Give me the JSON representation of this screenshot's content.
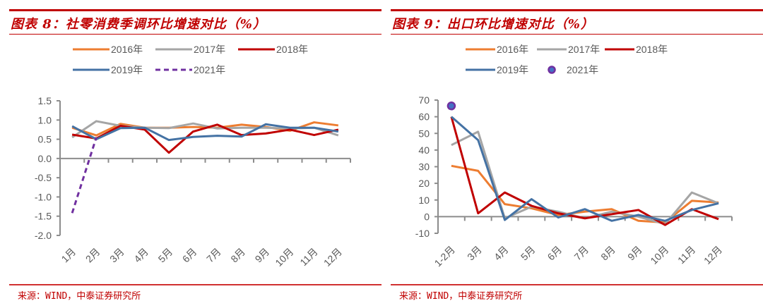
{
  "panels": [
    {
      "title": "图表 8：社零消费季调环比增速对比（%）",
      "source": "来源：WIND，中泰证券研究所"
    },
    {
      "title": "图表 9：出口环比增速对比（%）",
      "source": "来源：WIND，中泰证券研究所"
    }
  ],
  "chart_data": [
    {
      "type": "line",
      "title": "社零消费季调环比增速对比（%）",
      "xlabel": "",
      "ylabel": "",
      "ylim": [
        -2.0,
        1.5
      ],
      "yticks": [
        "1.5",
        "1.0",
        "0.5",
        "0.0",
        "-0.5",
        "-1.0",
        "-1.5",
        "-2.0"
      ],
      "ytick_values": [
        1.5,
        1.0,
        0.5,
        0.0,
        -0.5,
        -1.0,
        -1.5,
        -2.0
      ],
      "categories": [
        "1月",
        "2月",
        "3月",
        "4月",
        "5月",
        "6月",
        "7月",
        "8月",
        "9月",
        "10月",
        "11月",
        "12月"
      ],
      "grid": false,
      "legend_position": "top",
      "series": [
        {
          "name": "2016年",
          "color": "#ed7d31",
          "style": "solid",
          "values": [
            0.8,
            0.6,
            0.9,
            0.8,
            0.8,
            0.82,
            0.8,
            0.88,
            0.82,
            0.72,
            0.94,
            0.86
          ]
        },
        {
          "name": "2017年",
          "color": "#a5a5a5",
          "style": "solid",
          "values": [
            0.55,
            0.97,
            0.85,
            0.8,
            0.79,
            0.91,
            0.78,
            0.8,
            0.8,
            0.78,
            0.8,
            0.6
          ]
        },
        {
          "name": "2018年",
          "color": "#c00000",
          "style": "solid",
          "values": [
            0.62,
            0.52,
            0.85,
            0.75,
            0.15,
            0.7,
            0.88,
            0.61,
            0.65,
            0.75,
            0.61,
            0.75
          ]
        },
        {
          "name": "2019年",
          "color": "#4472a4",
          "style": "solid",
          "values": [
            0.84,
            0.5,
            0.79,
            0.8,
            0.48,
            0.56,
            0.59,
            0.57,
            0.89,
            0.8,
            0.8,
            0.7
          ]
        },
        {
          "name": "2021年",
          "color": "#7030a0",
          "style": "dashed",
          "values": [
            -1.42,
            0.55,
            null,
            null,
            null,
            null,
            null,
            null,
            null,
            null,
            null,
            null
          ]
        }
      ]
    },
    {
      "type": "line",
      "title": "出口环比增速对比（%）",
      "xlabel": "",
      "ylabel": "",
      "ylim": [
        -10,
        70
      ],
      "yticks": [
        "70",
        "60",
        "50",
        "40",
        "30",
        "20",
        "10",
        "0",
        "-10"
      ],
      "ytick_values": [
        70,
        60,
        50,
        40,
        30,
        20,
        10,
        0,
        -10
      ],
      "categories": [
        "1-2月",
        "3月",
        "4月",
        "5月",
        "6月",
        "7月",
        "8月",
        "9月",
        "10月",
        "11月",
        "12月"
      ],
      "grid": false,
      "legend_position": "top",
      "series": [
        {
          "name": "2016年",
          "color": "#ed7d31",
          "style": "solid",
          "values": [
            30.5,
            27.5,
            7.5,
            5.0,
            1.0,
            3.0,
            4.5,
            -2.5,
            -3.5,
            9.5,
            8.5
          ]
        },
        {
          "name": "2017年",
          "color": "#a5a5a5",
          "style": "solid",
          "values": [
            43.0,
            51.0,
            -1.0,
            6.0,
            3.0,
            -1.0,
            3.0,
            0.0,
            -4.5,
            14.5,
            8.0
          ]
        },
        {
          "name": "2018年",
          "color": "#c00000",
          "style": "solid",
          "values": [
            60.0,
            2.0,
            14.5,
            6.5,
            2.0,
            -1.0,
            1.5,
            4.0,
            -5.0,
            4.5,
            -1.5
          ]
        },
        {
          "name": "2019年",
          "color": "#4472a4",
          "style": "solid",
          "values": [
            60.0,
            46.0,
            -2.0,
            10.5,
            -0.5,
            4.5,
            -2.5,
            1.0,
            -2.5,
            4.0,
            8.0
          ]
        },
        {
          "name": "2021年",
          "color": "#7030a0",
          "fill": "#4472c4",
          "style": "marker",
          "values": [
            66.5,
            null,
            null,
            null,
            null,
            null,
            null,
            null,
            null,
            null,
            null
          ]
        }
      ]
    }
  ]
}
